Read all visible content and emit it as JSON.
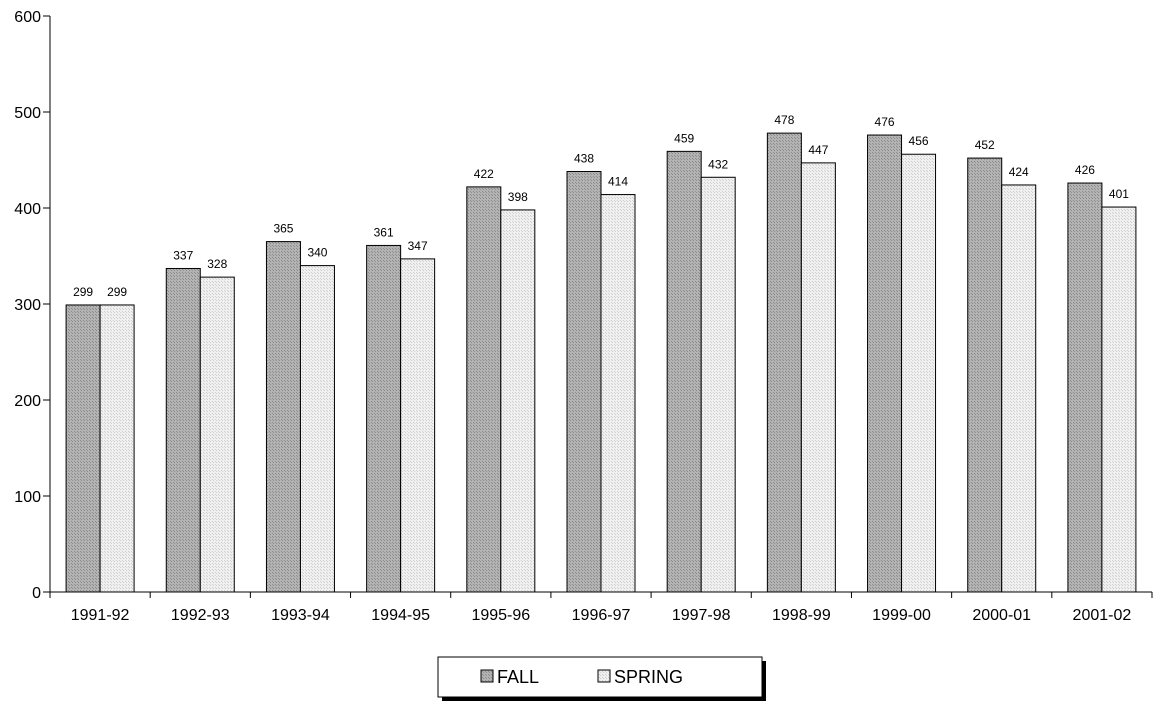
{
  "chart_data": {
    "type": "bar",
    "title": "",
    "xlabel": "",
    "ylabel": "",
    "ylim": [
      0,
      600
    ],
    "yticks": [
      0,
      100,
      200,
      300,
      400,
      500,
      600
    ],
    "grid": false,
    "legend_position": "bottom-center",
    "categories": [
      "1991-92",
      "1992-93",
      "1993-94",
      "1994-95",
      "1995-96",
      "1996-97",
      "1997-98",
      "1998-99",
      "1999-00",
      "2000-01",
      "2001-02"
    ],
    "series": [
      {
        "name": "FALL",
        "values": [
          299,
          337,
          365,
          361,
          422,
          438,
          459,
          478,
          476,
          452,
          426
        ],
        "color": "#a6a6a6"
      },
      {
        "name": "SPRING",
        "values": [
          299,
          328,
          340,
          347,
          398,
          414,
          432,
          447,
          456,
          424,
          401
        ],
        "color": "#e6e6e6"
      }
    ]
  }
}
